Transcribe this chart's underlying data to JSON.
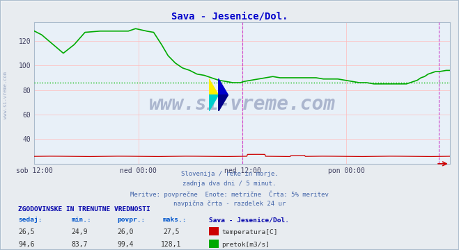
{
  "title": "Sava - Jesenice/Dol.",
  "title_color": "#0000cc",
  "bg_color": "#e8ecf0",
  "plot_bg_color": "#e8f0f8",
  "grid_color": "#ffbbbb",
  "xlabel_ticks": [
    "sob 12:00",
    "ned 00:00",
    "ned 12:00",
    "pon 00:00"
  ],
  "xlabel_tick_positions": [
    0,
    144,
    288,
    432
  ],
  "total_points": 576,
  "ylim": [
    20,
    135
  ],
  "yticks": [
    40,
    60,
    80,
    100,
    120
  ],
  "tick_color": "#404060",
  "vline_color": "#cc44cc",
  "vline_positions": [
    288,
    560
  ],
  "avg_line_color": "#00bb00",
  "avg_line_value": 86.0,
  "temp_color": "#cc0000",
  "flow_color": "#00aa00",
  "watermark_text": "www.si-vreme.com",
  "watermark_color": "#203070",
  "watermark_alpha": 0.3,
  "footer_lines": [
    "Slovenija / reke in morje.",
    "zadnja dva dni / 5 minut.",
    "Meritve: povprečne  Enote: metrične  Črta: 5% meritev",
    "navpična črta - razdelek 24 ur"
  ],
  "footer_color": "#4466aa",
  "table_header_color": "#0000aa",
  "table_label_color": "#0055cc",
  "table_value_color": "#333333",
  "table_title": "Sava - Jesenice/Dol.",
  "col_headers": [
    "sedaj:",
    "min.:",
    "povpr.:",
    "maks.:"
  ],
  "table_rows": [
    {
      "vals": [
        "26,5",
        "24,9",
        "26,0",
        "27,5"
      ],
      "label": "temperatura[C]",
      "color": "#cc0000"
    },
    {
      "vals": [
        "94,6",
        "83,7",
        "99,4",
        "128,1"
      ],
      "label": "pretok[m3/s]",
      "color": "#00aa00"
    }
  ],
  "sidebar_text": "www.si-vreme.com",
  "sidebar_color": "#8899bb",
  "border_color": "#aabbcc"
}
